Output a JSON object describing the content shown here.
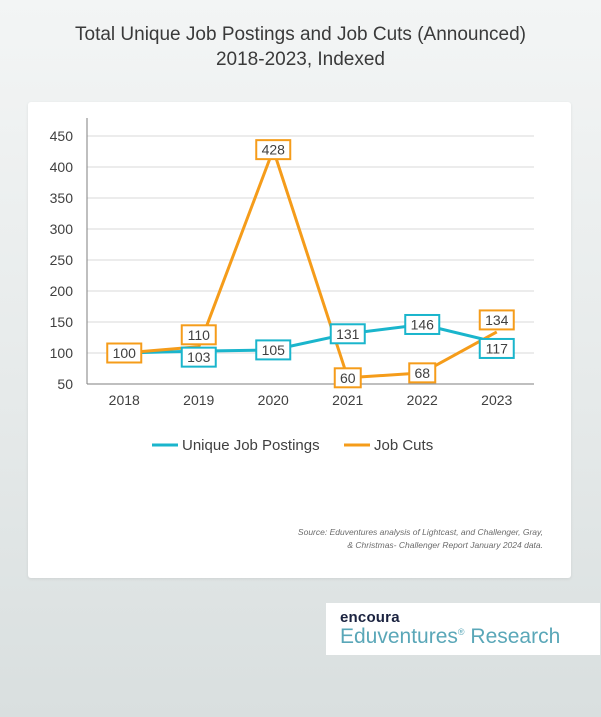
{
  "title_line1": "Total Unique Job Postings and Job Cuts (Announced)",
  "title_line2": "2018-2023, Indexed",
  "source_line1": "Source: Eduventures analysis of Lightcast, and Challenger, Gray,",
  "source_line2": "& Christmas- Challenger Report January 2024 data.",
  "brand": {
    "company": "encoura",
    "product": "Eduventures",
    "product_suffix": " Research",
    "mark": "®"
  },
  "colors": {
    "postings": "#1ab5cc",
    "cuts": "#f59c1a",
    "axis": "#7f7f7f",
    "grid": "#d9d9d9"
  },
  "chart_data": {
    "type": "line",
    "categories": [
      "2018",
      "2019",
      "2020",
      "2021",
      "2022",
      "2023"
    ],
    "series": [
      {
        "name": "Unique Job Postings",
        "values": [
          100,
          103,
          105,
          131,
          146,
          117
        ]
      },
      {
        "name": "Job Cuts",
        "values": [
          100,
          110,
          428,
          60,
          68,
          134
        ]
      }
    ],
    "yticks": [
      50,
      100,
      150,
      200,
      250,
      300,
      350,
      400,
      450
    ],
    "ylim": [
      50,
      450
    ],
    "grid": true,
    "legend": "bottom"
  }
}
